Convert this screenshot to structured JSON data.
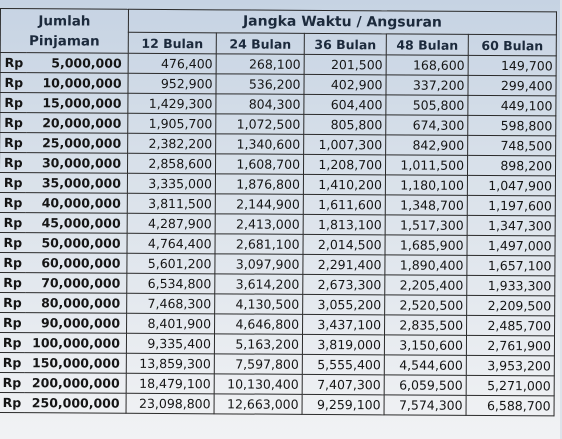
{
  "table": {
    "header_amount_line1": "Jumlah",
    "header_amount_line2": "Pinjaman",
    "header_group": "Jangka Waktu / Angsuran",
    "terms": [
      "12 Bulan",
      "24 Bulan",
      "36 Bulan",
      "48 Bulan",
      "60 Bulan"
    ],
    "currency": "Rp",
    "rows": [
      {
        "amount": "5,000,000",
        "values": [
          "476,400",
          "268,100",
          "201,500",
          "168,600",
          "149,700"
        ]
      },
      {
        "amount": "10,000,000",
        "values": [
          "952,900",
          "536,200",
          "402,900",
          "337,200",
          "299,400"
        ]
      },
      {
        "amount": "15,000,000",
        "values": [
          "1,429,300",
          "804,300",
          "604,400",
          "505,800",
          "449,100"
        ]
      },
      {
        "amount": "20,000,000",
        "values": [
          "1,905,700",
          "1,072,500",
          "805,800",
          "674,300",
          "598,800"
        ]
      },
      {
        "amount": "25,000,000",
        "values": [
          "2,382,200",
          "1,340,600",
          "1,007,300",
          "842,900",
          "748,500"
        ]
      },
      {
        "amount": "30,000,000",
        "values": [
          "2,858,600",
          "1,608,700",
          "1,208,700",
          "1,011,500",
          "898,200"
        ]
      },
      {
        "amount": "35,000,000",
        "values": [
          "3,335,000",
          "1,876,800",
          "1,410,200",
          "1,180,100",
          "1,047,900"
        ]
      },
      {
        "amount": "40,000,000",
        "values": [
          "3,811,500",
          "2,144,900",
          "1,611,600",
          "1,348,700",
          "1,197,600"
        ]
      },
      {
        "amount": "45,000,000",
        "values": [
          "4,287,900",
          "2,413,000",
          "1,813,100",
          "1,517,300",
          "1,347,300"
        ]
      },
      {
        "amount": "50,000,000",
        "values": [
          "4,764,400",
          "2,681,100",
          "2,014,500",
          "1,685,900",
          "1,497,000"
        ]
      },
      {
        "amount": "60,000,000",
        "values": [
          "5,601,200",
          "3,097,900",
          "2,291,400",
          "1,890,400",
          "1,657,100"
        ]
      },
      {
        "amount": "70,000,000",
        "values": [
          "6,534,800",
          "3,614,200",
          "2,673,300",
          "2,205,400",
          "1,933,300"
        ]
      },
      {
        "amount": "80,000,000",
        "values": [
          "7,468,300",
          "4,130,500",
          "3,055,200",
          "2,520,500",
          "2,209,500"
        ]
      },
      {
        "amount": "90,000,000",
        "values": [
          "8,401,900",
          "4,646,800",
          "3,437,100",
          "2,835,500",
          "2,485,700"
        ]
      },
      {
        "amount": "100,000,000",
        "values": [
          "9,335,400",
          "5,163,200",
          "3,819,000",
          "3,150,600",
          "2,761,900"
        ]
      },
      {
        "amount": "150,000,000",
        "values": [
          "13,859,300",
          "7,597,800",
          "5,555,400",
          "4,544,600",
          "3,953,200"
        ]
      },
      {
        "amount": "200,000,000",
        "values": [
          "18,479,100",
          "10,130,400",
          "7,407,300",
          "6,059,500",
          "5,271,000"
        ]
      },
      {
        "amount": "250,000,000",
        "values": [
          "23,098,800",
          "12,663,000",
          "9,259,100",
          "7,574,300",
          "6,588,700"
        ]
      }
    ]
  }
}
